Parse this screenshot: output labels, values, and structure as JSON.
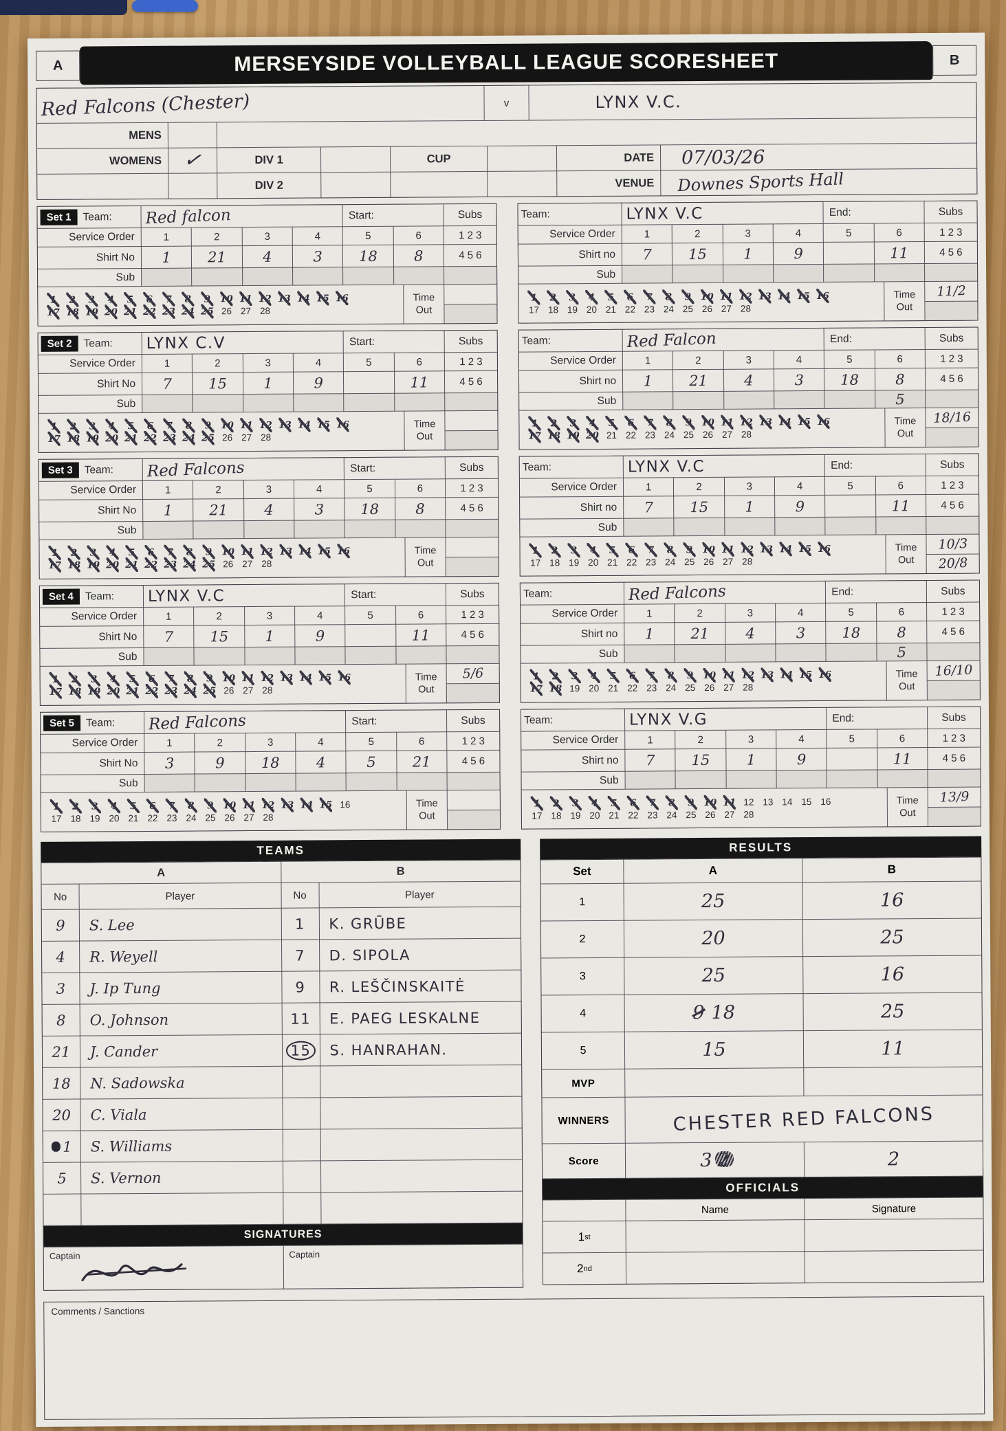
{
  "header": {
    "title": "MERSEYSIDE VOLLEYBALL LEAGUE SCORESHEET",
    "box_a": "A",
    "box_b": "B",
    "team_a": "Red Falcons (Chester)",
    "vs": "v",
    "team_b": "LYNX V.C."
  },
  "meta": {
    "mens_label": "MENS",
    "womens_label": "WOMENS",
    "womens_check": "✓",
    "div1_label": "DIV 1",
    "div2_label": "DIV 2",
    "cup_label": "CUP",
    "date_label": "DATE",
    "date_value": "07/03/26",
    "venue_label": "VENUE",
    "venue_value": "Downes Sports Hall"
  },
  "labels": {
    "team": "Team:",
    "start": "Start:",
    "end": "End:",
    "service_order": "Service Order",
    "shirt_no_left": "Shirt No",
    "shirt_no_right": "Shirt no",
    "sub": "Sub",
    "subs": "Subs",
    "subs_line1": "1 2 3",
    "subs_line2": "4 5 6",
    "time": "Time",
    "out": "Out",
    "order_numbers": [
      "1",
      "2",
      "3",
      "4",
      "5",
      "6"
    ]
  },
  "tally": {
    "row1_start": 1,
    "row1_end": 16,
    "row2_start": 17,
    "row2_end": 28
  },
  "sets": [
    {
      "tag": "Set 1",
      "left": {
        "team": "Red falcon",
        "shirts": [
          "1",
          "21",
          "4",
          "3",
          "18",
          "8"
        ],
        "subs_row": [
          "",
          "",
          "",
          "",
          "",
          ""
        ],
        "points_scored": 25,
        "note1": "",
        "note2": ""
      },
      "right": {
        "team": "LYNX V.C",
        "shirts": [
          "7",
          "15",
          "1",
          "9",
          "",
          "11"
        ],
        "subs_row": [
          "",
          "",
          "",
          "",
          "",
          ""
        ],
        "points_scored": 16,
        "note1": "11/2",
        "note2": ""
      }
    },
    {
      "tag": "Set 2",
      "left": {
        "team": "LYNX C.V",
        "shirts": [
          "7",
          "15",
          "1",
          "9",
          "",
          "11"
        ],
        "subs_row": [
          "",
          "",
          "",
          "",
          "",
          ""
        ],
        "points_scored": 25,
        "note1": "",
        "note2": ""
      },
      "right": {
        "team": "Red Falcon",
        "shirts": [
          "1",
          "21",
          "4",
          "3",
          "18",
          "8"
        ],
        "subs_row": [
          "",
          "",
          "",
          "",
          "",
          "5"
        ],
        "points_scored": 20,
        "note1": "18/16",
        "note2": ""
      }
    },
    {
      "tag": "Set 3",
      "left": {
        "team": "Red Falcons",
        "shirts": [
          "1",
          "21",
          "4",
          "3",
          "18",
          "8"
        ],
        "subs_row": [
          "",
          "",
          "",
          "",
          "",
          ""
        ],
        "points_scored": 25,
        "note1": "",
        "note2": ""
      },
      "right": {
        "team": "LYNX V.C",
        "shirts": [
          "7",
          "15",
          "1",
          "9",
          "",
          "11"
        ],
        "subs_row": [
          "",
          "",
          "",
          "",
          "",
          ""
        ],
        "points_scored": 16,
        "note1": "10/3",
        "note2": "20/8"
      }
    },
    {
      "tag": "Set 4",
      "left": {
        "team": "LYNX V.C",
        "shirts": [
          "7",
          "15",
          "1",
          "9",
          "",
          "11"
        ],
        "subs_row": [
          "",
          "",
          "",
          "",
          "",
          ""
        ],
        "points_scored": 25,
        "note1": "5/6",
        "note2": ""
      },
      "right": {
        "team": "Red Falcons",
        "shirts": [
          "1",
          "21",
          "4",
          "3",
          "18",
          "8"
        ],
        "subs_row": [
          "",
          "",
          "",
          "",
          "",
          "5"
        ],
        "points_scored": 18,
        "note1": "16/10",
        "note2": ""
      }
    },
    {
      "tag": "Set 5",
      "left": {
        "team": "Red Falcons",
        "shirts": [
          "3",
          "9",
          "18",
          "4",
          "5",
          "21"
        ],
        "subs_row": [
          "",
          "",
          "",
          "",
          "",
          ""
        ],
        "points_scored": 15,
        "note1": "",
        "note2": ""
      },
      "right": {
        "team": "LYNX V.G",
        "shirts": [
          "7",
          "15",
          "1",
          "9",
          "",
          "11"
        ],
        "subs_row": [
          "",
          "",
          "",
          "",
          "",
          ""
        ],
        "points_scored": 11,
        "note1": "13/9",
        "note2": ""
      }
    }
  ],
  "teams_section": {
    "bar": "TEAMS",
    "col_a": "A",
    "col_b": "B",
    "no_header": "No",
    "player_header": "Player",
    "rows_total": 10,
    "team_a": [
      {
        "no": "9",
        "name": "S. Lee"
      },
      {
        "no": "4",
        "name": "R. Weyell"
      },
      {
        "no": "3",
        "name": "J. Ip Tung"
      },
      {
        "no": "8",
        "name": "O. Johnson"
      },
      {
        "no": "21",
        "name": "J. Cander"
      },
      {
        "no": "18",
        "name": "N. Sadowska"
      },
      {
        "no": "20",
        "name": "C. Viala"
      },
      {
        "no": "1",
        "name": "S. Williams",
        "scribbled_no": true
      },
      {
        "no": "5",
        "name": "S. Vernon"
      }
    ],
    "team_b": [
      {
        "no": "1",
        "name": "K. GRŪBE"
      },
      {
        "no": "7",
        "name": "D. SIPOLA"
      },
      {
        "no": "9",
        "name": "R. LEŠČINSKAITĖ"
      },
      {
        "no": "11",
        "name": "E. PAEG LESKALNE"
      },
      {
        "no": "15",
        "name": "S. HANRAHAN.",
        "circled_no": true
      }
    ],
    "signatures_bar": "SIGNATURES",
    "captain_label_a": "Captain",
    "captain_label_b": "Captain"
  },
  "results": {
    "bar": "RESULTS",
    "set_header": "Set",
    "a_header": "A",
    "b_header": "B",
    "rows": [
      {
        "set": "1",
        "a": "25",
        "b": "16"
      },
      {
        "set": "2",
        "a": "20",
        "b": "25"
      },
      {
        "set": "3",
        "a": "25",
        "b": "16"
      },
      {
        "set": "4",
        "a": "18",
        "a_crossed": "9",
        "b": "25"
      },
      {
        "set": "5",
        "a": "15",
        "b": "11"
      }
    ],
    "mvp_label": "MVP",
    "winners_label": "WINNERS",
    "winners_value": "CHESTER RED FALCONS",
    "score_label": "Score",
    "score_a": "3",
    "score_a_scribble": "2",
    "score_b": "2"
  },
  "officials": {
    "bar": "OFFICIALS",
    "name_header": "Name",
    "signature_header": "Signature",
    "first_n": "1",
    "first_suffix": "st",
    "second_n": "2",
    "second_suffix": "nd"
  },
  "comments_label": "Comments / Sanctions",
  "colors": {
    "paper": "#eae8e2",
    "bar_black": "#161616",
    "ink": "#312e3c",
    "line": "#56525c",
    "shade": "#dcdad4",
    "wood": "#b18753",
    "blue_object": "#3c66cb"
  }
}
